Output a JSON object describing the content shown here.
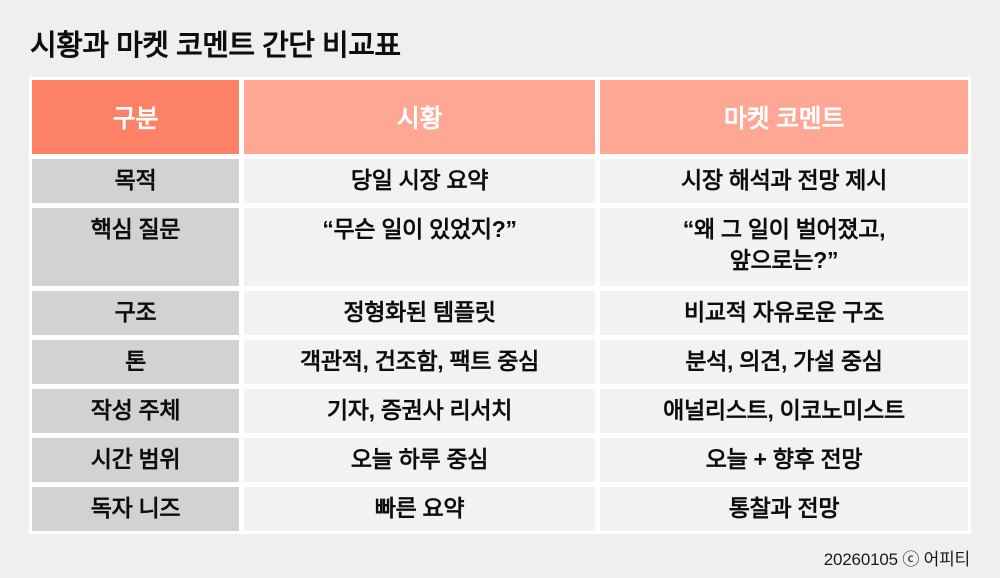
{
  "page": {
    "title": "시황과 마켓 코멘트 간단 비교표",
    "footer": "20260105 ⓒ 어피티"
  },
  "colors": {
    "page_bg": "#F0EFED",
    "header_primary": "#FC8165",
    "header_secondary": "#FEA795",
    "label_bg": "#D2D2D2",
    "cell_bg": "#F2F2F2",
    "gap": "#FFFFFF",
    "header_text": "#FFFFFF",
    "body_text": "#0D0D0D"
  },
  "table": {
    "headers": [
      {
        "label": "구분"
      },
      {
        "label": "시황"
      },
      {
        "label": "마켓 코멘트"
      }
    ],
    "rows": [
      {
        "label": "목적",
        "sihwang": "당일 시장 요약",
        "comment": "시장 해석과 전망 제시"
      },
      {
        "label": "핵심 질문",
        "sihwang": "“무슨 일이 있었지?”",
        "comment": "“왜 그 일이 벌어졌고,\n앞으로는?”"
      },
      {
        "label": "구조",
        "sihwang": "정형화된 템플릿",
        "comment": "비교적 자유로운 구조"
      },
      {
        "label": "톤",
        "sihwang": "객관적, 건조함, 팩트 중심",
        "comment": "분석, 의견, 가설 중심"
      },
      {
        "label": "작성 주체",
        "sihwang": "기자, 증권사 리서치",
        "comment": "애널리스트, 이코노미스트"
      },
      {
        "label": "시간 범위",
        "sihwang": "오늘 하루 중심",
        "comment": "오늘 + 향후 전망"
      },
      {
        "label": "독자 니즈",
        "sihwang": "빠른 요약",
        "comment": "통찰과 전망"
      }
    ]
  }
}
